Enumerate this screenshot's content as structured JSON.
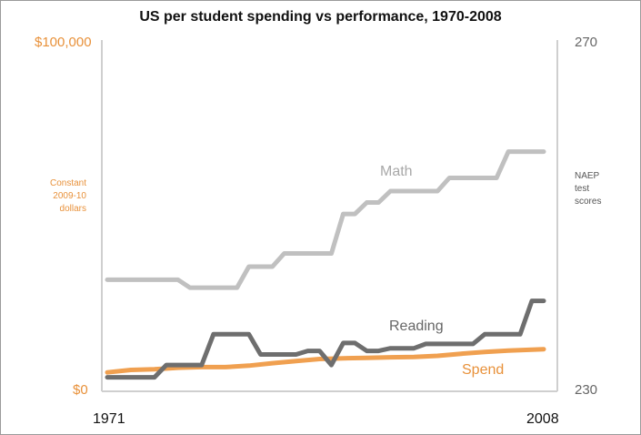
{
  "chart_data": {
    "type": "line",
    "title": "US per student spending vs performance, 1970-2008",
    "x_tick_labels": [
      "1971",
      "2008"
    ],
    "xlim": [
      1971,
      2008
    ],
    "left_axis": {
      "label_lines": [
        "Constant",
        "2009-10",
        "dollars"
      ],
      "tick_labels": [
        "$100,000",
        "$0"
      ],
      "ylim": [
        0,
        100000
      ]
    },
    "right_axis": {
      "label_lines": [
        "NAEP",
        "test",
        "scores"
      ],
      "tick_labels": [
        "270",
        "230"
      ],
      "ylim": [
        230,
        270
      ]
    },
    "series": [
      {
        "name": "Math",
        "axis": "right",
        "color": "#c0c0c0",
        "x": [
          1971,
          1972,
          1973,
          1974,
          1975,
          1976,
          1977,
          1978,
          1979,
          1980,
          1981,
          1982,
          1983,
          1984,
          1985,
          1986,
          1987,
          1988,
          1989,
          1990,
          1991,
          1992,
          1993,
          1994,
          1995,
          1996,
          1997,
          1998,
          1999,
          2000,
          2001,
          2002,
          2003,
          2004,
          2005,
          2006,
          2007,
          2008
        ],
        "values": [
          242.7,
          242.7,
          242.7,
          242.7,
          242.7,
          242.7,
          242.7,
          241.8,
          241.8,
          241.8,
          241.8,
          241.8,
          244.2,
          244.2,
          244.2,
          245.7,
          245.7,
          245.7,
          245.7,
          245.7,
          250.2,
          250.2,
          251.5,
          251.5,
          252.8,
          252.8,
          252.8,
          252.8,
          252.8,
          254.3,
          254.3,
          254.3,
          254.3,
          254.3,
          257.3,
          257.3,
          257.3,
          257.3
        ]
      },
      {
        "name": "Reading",
        "axis": "right",
        "color": "#6e6e6e",
        "x": [
          1971,
          1972,
          1973,
          1974,
          1975,
          1976,
          1977,
          1978,
          1979,
          1980,
          1981,
          1982,
          1983,
          1984,
          1985,
          1986,
          1987,
          1988,
          1989,
          1990,
          1991,
          1992,
          1993,
          1994,
          1995,
          1996,
          1997,
          1998,
          1999,
          2000,
          2001,
          2002,
          2003,
          2004,
          2005,
          2006,
          2007,
          2008
        ],
        "values": [
          231.6,
          231.6,
          231.6,
          231.6,
          231.6,
          233.0,
          233.0,
          233.0,
          233.0,
          236.5,
          236.5,
          236.5,
          236.5,
          234.2,
          234.2,
          234.2,
          234.2,
          234.6,
          234.6,
          233.0,
          235.5,
          235.5,
          234.6,
          234.6,
          234.9,
          234.9,
          234.9,
          235.4,
          235.4,
          235.4,
          235.4,
          235.4,
          236.5,
          236.5,
          236.5,
          236.5,
          240.3,
          240.3
        ]
      },
      {
        "name": "Spend",
        "axis": "left",
        "color": "#f0a050",
        "x": [
          1971,
          1973,
          1975,
          1977,
          1979,
          1981,
          1983,
          1985,
          1987,
          1989,
          1991,
          1993,
          1995,
          1997,
          1999,
          2001,
          2003,
          2005,
          2008
        ],
        "values": [
          5400,
          6100,
          6300,
          6700,
          6900,
          6900,
          7300,
          8000,
          8600,
          9200,
          9400,
          9500,
          9700,
          9800,
          10100,
          10700,
          11200,
          11600,
          12000
        ]
      }
    ]
  }
}
